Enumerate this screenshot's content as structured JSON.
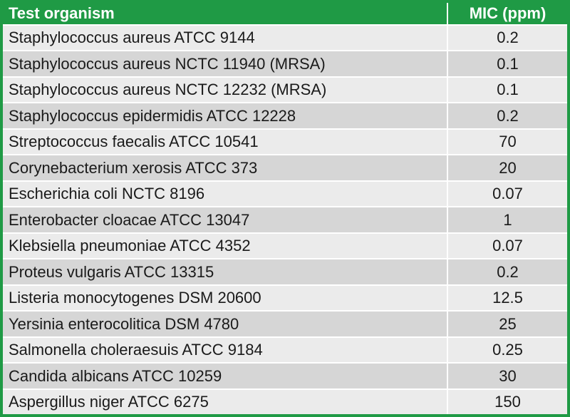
{
  "table": {
    "header": [
      "Test organism",
      "MIC (ppm)"
    ],
    "rows": [
      [
        "Staphylococcus aureus ATCC 9144",
        "0.2"
      ],
      [
        "Staphylococcus aureus NCTC 11940 (MRSA)",
        "0.1"
      ],
      [
        "Staphylococcus aureus NCTC 12232 (MRSA)",
        "0.1"
      ],
      [
        "Staphylococcus epidermidis ATCC 12228",
        "0.2"
      ],
      [
        "Streptococcus faecalis ATCC 10541",
        "70"
      ],
      [
        "Corynebacterium xerosis ATCC 373",
        "20"
      ],
      [
        "Escherichia coli NCTC 8196",
        "0.07"
      ],
      [
        "Enterobacter cloacae ATCC 13047",
        "1"
      ],
      [
        "Klebsiella pneumoniae ATCC 4352",
        "0.07"
      ],
      [
        "Proteus vulgaris ATCC 13315",
        "0.2"
      ],
      [
        "Listeria monocytogenes DSM 20600",
        "12.5"
      ],
      [
        "Yersinia enterocolitica DSM 4780",
        "25"
      ],
      [
        "Salmonella choleraesuis ATCC 9184",
        "0.25"
      ],
      [
        "Candida albicans ATCC 10259",
        "30"
      ],
      [
        "Aspergillus niger ATCC 6275",
        "150"
      ]
    ]
  }
}
